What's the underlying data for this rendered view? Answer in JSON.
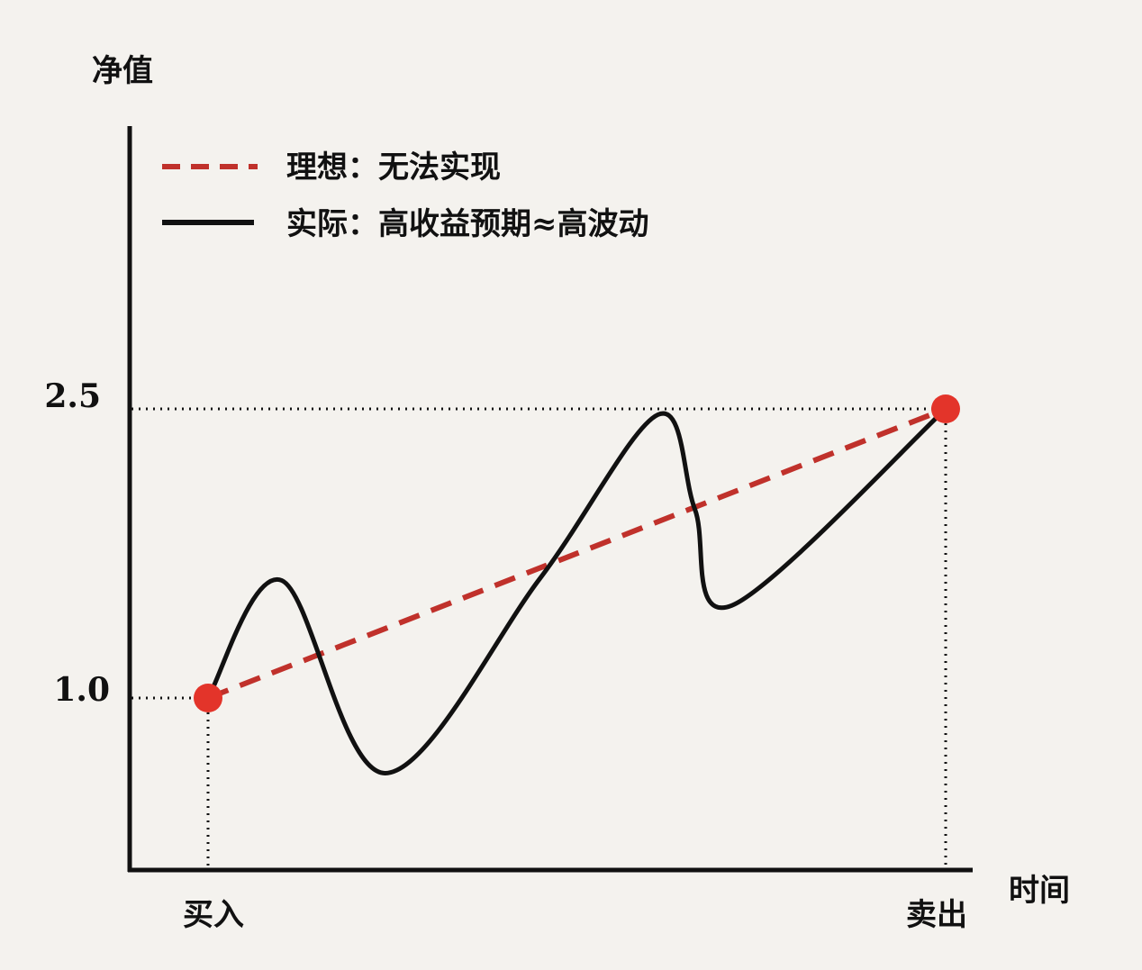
{
  "chart_data": {
    "type": "line",
    "ylabel": "净值",
    "xlabel": "时间",
    "x_ticks": [
      "买入",
      "卖出"
    ],
    "y_ticks": [
      "1.0",
      "2.5"
    ],
    "y_tick_values": [
      1.0,
      2.5
    ],
    "legend_position": "top-left",
    "series": [
      {
        "name": "理想：无法实现",
        "style": "dashed",
        "color": "#c0312b",
        "points": [
          [
            0,
            1.0
          ],
          [
            1,
            2.5
          ]
        ]
      },
      {
        "name": "实际：高收益预期≈高波动",
        "style": "solid",
        "color": "#111111",
        "points": [
          [
            0,
            1.0
          ],
          [
            0.1,
            1.61
          ],
          [
            0.24,
            0.61
          ],
          [
            0.45,
            1.62
          ],
          [
            0.61,
            2.47
          ],
          [
            0.66,
            1.98
          ],
          [
            0.71,
            1.48
          ],
          [
            1,
            2.5
          ]
        ]
      }
    ],
    "markers": [
      {
        "label": "buy",
        "x": 0,
        "y": 1.0,
        "color": "#e3342a"
      },
      {
        "label": "sell",
        "x": 1,
        "y": 2.5,
        "color": "#e3342a"
      }
    ]
  }
}
